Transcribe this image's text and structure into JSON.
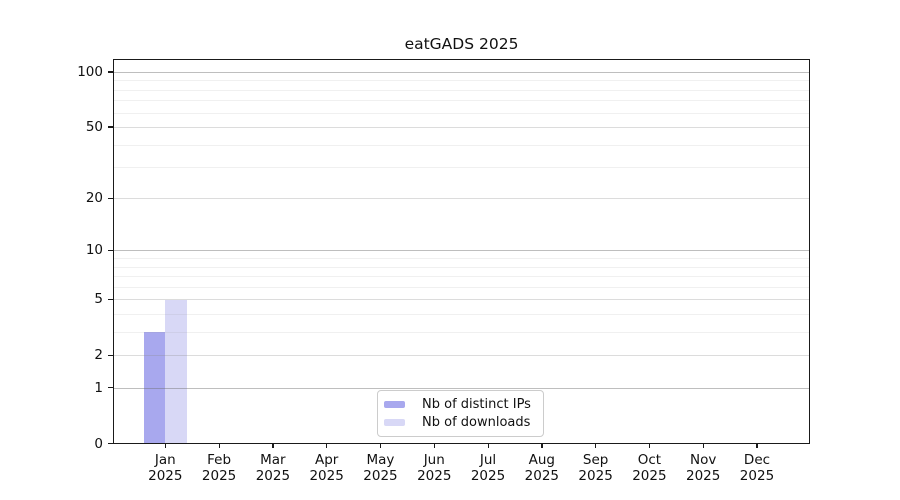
{
  "chart_data": {
    "type": "bar",
    "title": "eatGADS 2025",
    "x_tick_labels": [
      {
        "line1": "Jan",
        "line2": "2025"
      },
      {
        "line1": "Feb",
        "line2": "2025"
      },
      {
        "line1": "Mar",
        "line2": "2025"
      },
      {
        "line1": "Apr",
        "line2": "2025"
      },
      {
        "line1": "May",
        "line2": "2025"
      },
      {
        "line1": "Jun",
        "line2": "2025"
      },
      {
        "line1": "Jul",
        "line2": "2025"
      },
      {
        "line1": "Aug",
        "line2": "2025"
      },
      {
        "line1": "Sep",
        "line2": "2025"
      },
      {
        "line1": "Oct",
        "line2": "2025"
      },
      {
        "line1": "Nov",
        "line2": "2025"
      },
      {
        "line1": "Dec",
        "line2": "2025"
      }
    ],
    "series": [
      {
        "name": "Nb of distinct IPs",
        "color": "#a8a8ee",
        "values": [
          3,
          0,
          0,
          0,
          0,
          0,
          0,
          0,
          0,
          0,
          0,
          0
        ]
      },
      {
        "name": "Nb of downloads",
        "color": "#d8d8f6",
        "values": [
          5,
          0,
          0,
          0,
          0,
          0,
          0,
          0,
          0,
          0,
          0,
          0
        ]
      }
    ],
    "y_axis": {
      "scale": "log1p",
      "tick_values": [
        0,
        1,
        2,
        5,
        10,
        20,
        50,
        100
      ],
      "tick_labels": [
        "0",
        "1",
        "2",
        "5",
        "10",
        "20",
        "50",
        "100"
      ],
      "major_gridline_values": [
        1,
        10,
        100
      ],
      "mid_gridline_values": [
        2,
        5,
        20,
        50
      ],
      "minor_gridline_values": [
        3,
        4,
        6,
        7,
        8,
        9,
        30,
        40,
        60,
        70,
        80,
        90
      ],
      "ylim": [
        0,
        117
      ]
    },
    "legend": {
      "position": "bottom-center",
      "entries": [
        "Nb of distinct IPs",
        "Nb of downloads"
      ]
    },
    "grid": "horizontal",
    "colors": {
      "bar_distinct_ips": "#a8a8ee",
      "bar_downloads": "#d8d8f6",
      "axis": "#1a1a1a",
      "text": "#111111",
      "legend_border": "#cccccc",
      "background": "#ffffff"
    }
  }
}
